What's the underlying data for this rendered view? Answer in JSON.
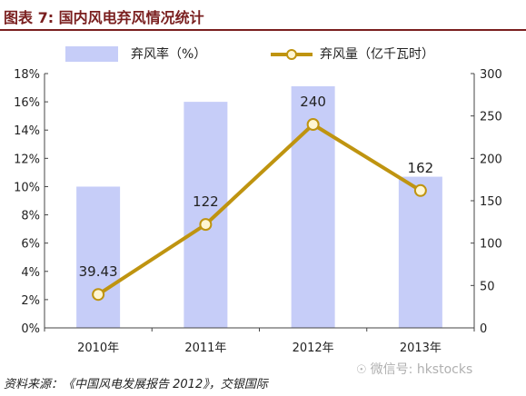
{
  "figure": {
    "title": "图表 7: 国内风电弃风情况统计",
    "source": "资料来源：《中国风电发展报告 2012》，交银国际",
    "watermark": "微信号: hkstocks",
    "watermark_icon": "wechat-icon"
  },
  "colors": {
    "title": "#7a1f1f",
    "bar": "#c6cdf8",
    "line": "#bf9410",
    "marker_fill": "#fff6d2",
    "axis": "#444444"
  },
  "chart_data": {
    "type": "bar",
    "categories": [
      "2010年",
      "2011年",
      "2012年",
      "2013年"
    ],
    "series": [
      {
        "name": "弃风率（%）",
        "type": "bar",
        "axis": "left",
        "values": [
          10,
          16,
          17.1,
          10.7
        ]
      },
      {
        "name": "弃风量（亿千瓦时）",
        "type": "line",
        "axis": "right",
        "values": [
          39.43,
          122,
          240,
          162
        ],
        "labels": [
          "39.43",
          "122",
          "240",
          "162"
        ]
      }
    ],
    "left_axis": {
      "ylim": [
        0,
        18
      ],
      "ticks": [
        "0%",
        "2%",
        "4%",
        "6%",
        "8%",
        "10%",
        "12%",
        "14%",
        "16%",
        "18%"
      ]
    },
    "right_axis": {
      "ylim": [
        0,
        300
      ],
      "ticks": [
        "0",
        "50",
        "100",
        "150",
        "200",
        "250",
        "300"
      ]
    },
    "grid": false,
    "legend_position": "top"
  }
}
